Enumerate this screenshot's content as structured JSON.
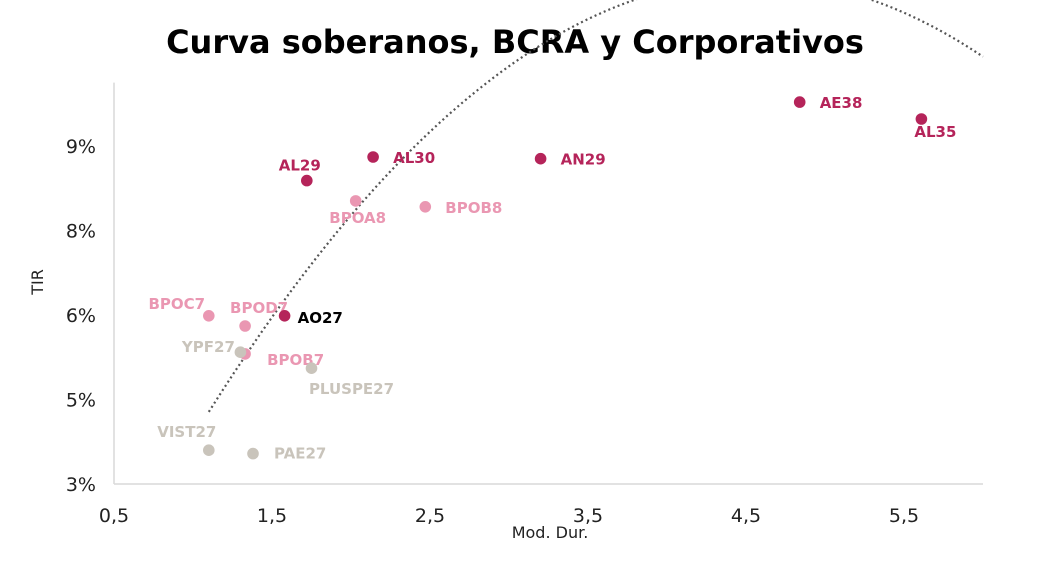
{
  "colors": {
    "soberano": "#b5245a",
    "bcra": "#ea97b2",
    "corporativo": "#c9c4bb",
    "highlight_text": "#000000",
    "trend": "#555555"
  },
  "chart_data": {
    "type": "scatter",
    "title": "Curva soberanos, BCRA y Corporativos",
    "xlabel": "Mod. Dur.",
    "ylabel": "TIR",
    "xlim": [
      0.5,
      6.0
    ],
    "x_ticks": [
      {
        "value": 0.5,
        "label": "0,5"
      },
      {
        "value": 1.5,
        "label": "1,5"
      },
      {
        "value": 2.5,
        "label": "2,5"
      },
      {
        "value": 3.5,
        "label": "3,5"
      },
      {
        "value": 4.5,
        "label": "4,5"
      },
      {
        "value": 5.5,
        "label": "5,5"
      }
    ],
    "y_ticks": [
      {
        "label": "3%"
      },
      {
        "label": "5%"
      },
      {
        "label": "6%"
      },
      {
        "label": "8%"
      },
      {
        "label": "9%"
      }
    ],
    "y_tick_note": "Axis tick labels are shown as printed; points use the visible tick grid as reference (tick index units 0-4, evenly spaced).",
    "ylim_ticks": [
      0,
      4.75
    ],
    "series": [
      {
        "name": "Soberanos",
        "color_key": "soberano",
        "points": [
          {
            "label": "AL29",
            "x": 1.72,
            "y_tick": 3.59
          },
          {
            "label": "AL30",
            "x": 2.14,
            "y_tick": 3.87
          },
          {
            "label": "AN29",
            "x": 3.2,
            "y_tick": 3.85
          },
          {
            "label": "AE38",
            "x": 4.84,
            "y_tick": 4.52
          },
          {
            "label": "AL35",
            "x": 5.61,
            "y_tick": 4.32
          }
        ]
      },
      {
        "name": "BCRA",
        "color_key": "bcra",
        "points": [
          {
            "label": "BPOA8",
            "x": 2.03,
            "y_tick": 3.35
          },
          {
            "label": "BPOB8",
            "x": 2.47,
            "y_tick": 3.28
          },
          {
            "label": "BPOC7",
            "x": 1.1,
            "y_tick": 1.99
          },
          {
            "label": "BPOD7",
            "x": 1.33,
            "y_tick": 1.87
          },
          {
            "label": "BPOB7",
            "x": 1.33,
            "y_tick": 1.54
          }
        ]
      },
      {
        "name": "AO27",
        "color_key": "soberano",
        "label_color_key": "highlight_text",
        "points": [
          {
            "label": "AO27",
            "x": 1.58,
            "y_tick": 1.99
          }
        ]
      },
      {
        "name": "Corporativos",
        "color_key": "corporativo",
        "points": [
          {
            "label": "YPF27",
            "x": 1.3,
            "y_tick": 1.56
          },
          {
            "label": "PLUSPE27",
            "x": 1.75,
            "y_tick": 1.37
          },
          {
            "label": "VIST27",
            "x": 1.1,
            "y_tick": 0.4
          },
          {
            "label": "PAE27",
            "x": 1.38,
            "y_tick": 0.36
          }
        ]
      }
    ],
    "trendline": {
      "type": "polynomial",
      "order": 2,
      "x_start": 1.1,
      "x_end": 6.0,
      "coefficients_tick_units": [
        -0.4317,
        3.923,
        -2.94
      ]
    }
  }
}
